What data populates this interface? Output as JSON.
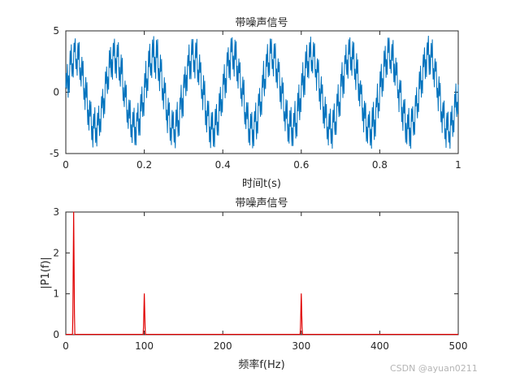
{
  "chart_data": [
    {
      "type": "line",
      "title": "带噪声信号",
      "xlabel": "时间t(s)",
      "ylabel": "",
      "xlim": [
        0,
        1
      ],
      "ylim": [
        -5,
        5
      ],
      "xticks": [
        "0",
        "0.2",
        "0.4",
        "0.6",
        "0.8",
        "1"
      ],
      "yticks": [
        "-5",
        "0",
        "5"
      ],
      "line_color": "#0072BD",
      "series": [
        {
          "description_components": [
            {
              "amplitude": 3,
              "frequency_hz": 10
            },
            {
              "amplitude": 1,
              "frequency_hz": 100
            },
            {
              "amplitude": 1,
              "frequency_hz": 300
            }
          ]
        }
      ]
    },
    {
      "type": "line",
      "title": "带噪声信号",
      "xlabel": "频率f(Hz)",
      "ylabel": "|P1(f)|",
      "xlim": [
        0,
        500
      ],
      "ylim": [
        0,
        3
      ],
      "xticks": [
        "0",
        "100",
        "200",
        "300",
        "400",
        "500"
      ],
      "yticks": [
        "0",
        "1",
        "2",
        "3"
      ],
      "line_color": "#E00000",
      "peaks": [
        {
          "x": 10,
          "y": 3
        },
        {
          "x": 100,
          "y": 1
        },
        {
          "x": 300,
          "y": 1
        }
      ]
    }
  ],
  "watermark": "CSDN @ayuan0211"
}
